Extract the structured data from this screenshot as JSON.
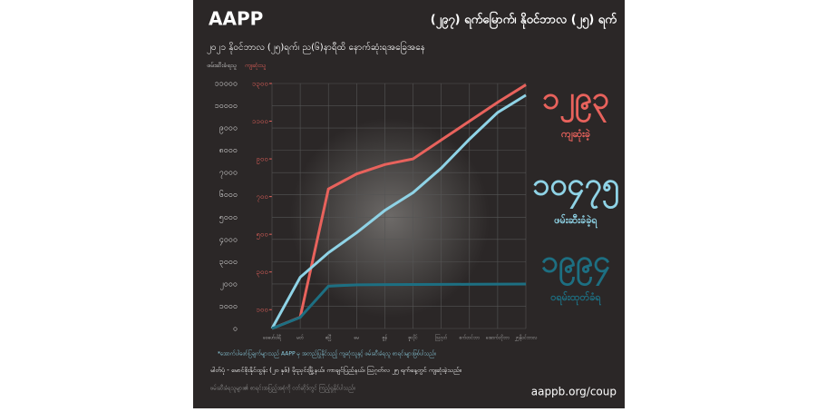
{
  "header": {
    "logo": "AAPP",
    "title": "(၂၉၇) ရက်မြောက်၊ နိုဝင်ဘာလ (၂၅) ရက်"
  },
  "chart_data": {
    "type": "line",
    "subtitle": "၂၀၂၁ နိုဝင်ဘာလ (၂၅)ရက်၊ ည(၆)နာရီထိ နောက်ဆုံးရအခြေအနေ",
    "y_axis_label": "ဖမ်းဆီးခံရသူ",
    "y2_axis_label": "ကျဆုံးသူ",
    "categories": [
      "ဖေဖော်ဝါရီ",
      "မတ်",
      "ဧပြီ",
      "မေ",
      "ဇွန်",
      "ဇူလိုင်",
      "ဩဂုတ်",
      "စက်တင်ဘာ",
      "အောက်တိုဘာ",
      "၂၅နိုဝင်ဘာလ"
    ],
    "series": [
      {
        "name": "ကျဆုံးခဲ့",
        "color": "#e8625c",
        "axis": "y2",
        "values": [
          0,
          60,
          740,
          820,
          870,
          900,
          1000,
          1100,
          1200,
          1293
        ],
        "total": 1293,
        "total_label": "၁၂၉၃"
      },
      {
        "name": "ဖမ်းဆီးခံခဲ့ရ",
        "color": "#8fd3e6",
        "values": [
          0,
          2300,
          3400,
          4300,
          5300,
          6100,
          7200,
          8500,
          9700,
          10475
        ],
        "total": 10475,
        "total_label": "၁၀၄၇၅"
      },
      {
        "name": "ဝရမ်းထုတ်ခံရ",
        "color": "#1d6f82",
        "values": [
          0,
          500,
          1900,
          1960,
          1970,
          1975,
          1980,
          1985,
          1990,
          1994
        ],
        "total": 1994,
        "total_label": "၁၉၉၄"
      }
    ],
    "ylim": [
      0,
      11000
    ],
    "yticks": [
      {
        "value": 0,
        "label": "၀"
      },
      {
        "value": 1000,
        "label": "၁၀၀၀"
      },
      {
        "value": 2000,
        "label": "၂၀၀၀"
      },
      {
        "value": 3000,
        "label": "၃၀၀၀"
      },
      {
        "value": 4000,
        "label": "၄၀၀၀"
      },
      {
        "value": 5000,
        "label": "၅၀၀၀"
      },
      {
        "value": 6000,
        "label": "၆၀၀၀"
      },
      {
        "value": 7000,
        "label": "၇၀၀၀"
      },
      {
        "value": 8000,
        "label": "၈၀၀၀"
      },
      {
        "value": 9000,
        "label": "၉၀၀၀"
      },
      {
        "value": 10000,
        "label": "၁၀၀၀၀"
      },
      {
        "value": 11000,
        "label": "၁၁၀၀၀"
      }
    ],
    "y2lim": [
      0,
      1300
    ],
    "y2ticks": [
      {
        "value": 100,
        "label": "၁၀၀"
      },
      {
        "value": 300,
        "label": "၃၀၀"
      },
      {
        "value": 500,
        "label": "၅၀၀"
      },
      {
        "value": 700,
        "label": "၇၀၀"
      },
      {
        "value": 900,
        "label": "၉၀၀"
      },
      {
        "value": 1100,
        "label": "၁၁၀၀"
      },
      {
        "value": 1300,
        "label": "၁၃၀၀"
      }
    ],
    "grid": true
  },
  "footer": {
    "note": "*အောက်ပါဖော်ပြချက်များသည် AAPP မှ အတည်ပြုနိုင်သည့် ကျဆုံးသူနှင့် ဖမ်းဆီးခံရသူ စာရင်းများဖြစ်ပါသည်။",
    "credit": "မါတ်ပုံ - မောင်စိုးနိုင်ထွန်း (၂၀ နှစ်) မိုးညှင်းမြို့နယ်၊ ကာချင်ပြည်နယ်၊ ဩဂုတ်လ ၂၅ ရက်နေ့တွင် ကျဆုံးခဲ့သည်။",
    "source": "ဖမ်းဆီးခံရသူများ၏ စာရင်းအပြည့်အစုံကို ဝဘ်ဆိုဒ်တွင် ကြည့်ရှုနိုင်ပါသည်။",
    "url": "aappb.org/coup"
  }
}
